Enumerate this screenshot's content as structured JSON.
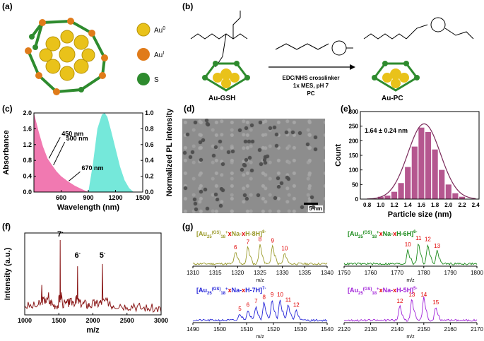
{
  "panel_labels": {
    "a": "(a)",
    "b": "(b)",
    "c": "(c)",
    "d": "(d)",
    "e": "(e)",
    "f": "(f)",
    "g": "(g)"
  },
  "legend_a": {
    "au0": "Au",
    "au0_sup": "0",
    "au1": "Au",
    "au1_sup": "I",
    "s": "S",
    "colors": {
      "au0": "#e9c21a",
      "au1": "#e07b1a",
      "s": "#2e8b2e"
    }
  },
  "scheme_b": {
    "left_label": "Au-GSH",
    "right_label": "Au-PC",
    "conditions": [
      "EDC/NHS crosslinker",
      "1x MES, pH 7",
      "PC"
    ]
  },
  "tem_d": {
    "scale_label": "5 nm"
  },
  "chart_data": [
    {
      "id": "c",
      "type": "area",
      "xlabel": "Wavelength (nm)",
      "ylabel_left": "Absorbance",
      "ylabel_right": "Normalized PL intensity",
      "xlim": [
        300,
        1500
      ],
      "ylim_left": [
        0,
        2.0
      ],
      "ylim_right": [
        0,
        1.0
      ],
      "xticks": [
        600,
        900,
        1200,
        1500
      ],
      "yticks_left": [
        0.0,
        0.4,
        0.8,
        1.2,
        1.6,
        2.0
      ],
      "yticks_right": [
        0.0,
        0.2,
        0.4,
        0.6,
        0.8,
        1.0
      ],
      "annotations": [
        "450 nm",
        "500 nm",
        "670 nm"
      ],
      "series": [
        {
          "role": "absorbance",
          "color": "#f06aa8",
          "x": [
            300,
            350,
            400,
            450,
            500,
            550,
            600,
            670,
            750,
            850,
            900
          ],
          "y": [
            2.0,
            1.55,
            1.15,
            0.85,
            0.68,
            0.52,
            0.4,
            0.28,
            0.16,
            0.05,
            0.0
          ]
        },
        {
          "role": "pl",
          "color": "#66e6d6",
          "x": [
            900,
            950,
            1000,
            1050,
            1080,
            1110,
            1150,
            1200,
            1250,
            1300,
            1350,
            1400
          ],
          "y": [
            0.0,
            0.35,
            0.8,
            0.98,
            1.0,
            0.95,
            0.78,
            0.55,
            0.32,
            0.15,
            0.05,
            0.0
          ]
        }
      ]
    },
    {
      "id": "e",
      "type": "bar",
      "xlabel": "Particle size (nm)",
      "ylabel": "Count",
      "annotation": "1.64 ± 0.24 nm",
      "xlim": [
        0.7,
        2.45
      ],
      "ylim": [
        0,
        300
      ],
      "xticks": [
        "0.8",
        "1.0",
        "1.2",
        "1.4",
        "1.6",
        "1.8",
        "2.0",
        "2.2",
        "2.4"
      ],
      "xtick_labels": [
        "0.8",
        "1.0",
        "1.2",
        "1.4",
        "1.6",
        "1.8",
        "2.0",
        "2.2",
        "2.4"
      ],
      "yticks": [
        0,
        50,
        100,
        150,
        200,
        250,
        300
      ],
      "bar_color": "#b5578f",
      "bins": [
        1.0,
        1.1,
        1.2,
        1.3,
        1.4,
        1.5,
        1.6,
        1.7,
        1.8,
        1.9,
        2.0,
        2.1,
        2.2
      ],
      "values": [
        8,
        12,
        25,
        55,
        110,
        180,
        245,
        230,
        170,
        100,
        50,
        20,
        8
      ]
    },
    {
      "id": "f",
      "type": "line",
      "xlabel": "m/z",
      "ylabel": "Intensity (a.u.)",
      "xlim": [
        1000,
        3000
      ],
      "xticks": [
        1000,
        1500,
        2000,
        2500,
        3000
      ],
      "color": "#8b1a1a",
      "peak_labels": [
        {
          "x": 1520,
          "text": "7",
          "sup": "-"
        },
        {
          "x": 1775,
          "text": "6",
          "sup": "-"
        },
        {
          "x": 2140,
          "text": "5",
          "sup": "-"
        }
      ],
      "x": [
        1000,
        1100,
        1200,
        1250,
        1300,
        1350,
        1400,
        1450,
        1500,
        1520,
        1540,
        1600,
        1650,
        1700,
        1750,
        1775,
        1800,
        1850,
        1900,
        1950,
        2000,
        2050,
        2100,
        2140,
        2180,
        2250,
        2300,
        2400,
        2500,
        2600,
        2700,
        2800,
        2900,
        3000
      ],
      "y": [
        0.12,
        0.1,
        0.14,
        0.4,
        0.22,
        0.3,
        0.18,
        0.12,
        0.25,
        1.0,
        0.3,
        0.15,
        0.22,
        0.18,
        0.25,
        0.65,
        0.2,
        0.15,
        0.18,
        0.12,
        0.2,
        0.15,
        0.18,
        0.68,
        0.2,
        0.18,
        0.12,
        0.14,
        0.1,
        0.15,
        0.08,
        0.06,
        0.05,
        0.04
      ]
    },
    {
      "id": "g1",
      "type": "line",
      "color": "#9a9a2a",
      "title_parts": [
        "[Au",
        "25",
        "(GS)",
        "18",
        "+",
        "x",
        "Na-",
        "x",
        "H-8H]",
        "8-"
      ],
      "xlabel": "m/z",
      "xlim": [
        1310,
        1340
      ],
      "xticks": [
        1310,
        1315,
        1320,
        1325,
        1330,
        1335,
        1340
      ],
      "peak_labels": [
        "6",
        "7",
        "8",
        "9",
        "10"
      ],
      "peak_x": [
        1319.5,
        1322.3,
        1325,
        1327.8,
        1330.5
      ],
      "peak_h": [
        0.45,
        0.65,
        0.75,
        0.7,
        0.4
      ]
    },
    {
      "id": "g2",
      "type": "line",
      "color": "#1a8a1a",
      "title_parts": [
        "[Au",
        "25",
        "(GS)",
        "18",
        "+",
        "x",
        "Na-",
        "x",
        "H-6H]",
        "6-"
      ],
      "xlabel": "m/z",
      "xlim": [
        1750,
        1800
      ],
      "xticks": [
        1750,
        1760,
        1770,
        1780,
        1790,
        1800
      ],
      "peak_labels": [
        "10",
        "11",
        "12",
        "13"
      ],
      "peak_x": [
        1774,
        1778,
        1781.5,
        1785
      ],
      "peak_h": [
        0.55,
        0.8,
        0.75,
        0.5
      ]
    },
    {
      "id": "g3",
      "type": "line",
      "color": "#2424d8",
      "title_parts": [
        "[Au",
        "25",
        "(GS)",
        "18",
        "+",
        "x",
        "Na-",
        "x",
        "H-7H]",
        "7-"
      ],
      "xlabel": "m/z",
      "xlim": [
        1490,
        1540
      ],
      "xticks": [
        1490,
        1500,
        1510,
        1520,
        1530,
        1540
      ],
      "peak_labels": [
        "5",
        "6",
        "7",
        "8",
        "9",
        "10",
        "11",
        "12"
      ],
      "peak_x": [
        1507.5,
        1510.5,
        1513.5,
        1516.5,
        1519.5,
        1522.5,
        1525.5,
        1528.5
      ],
      "peak_h": [
        0.25,
        0.4,
        0.55,
        0.7,
        0.8,
        0.8,
        0.6,
        0.4
      ]
    },
    {
      "id": "g4",
      "type": "line",
      "color": "#a020d8",
      "title_parts": [
        "[Au",
        "25",
        "(GS)",
        "18",
        "+",
        "x",
        "Na-",
        "x",
        "H-5H]",
        "5-"
      ],
      "xlabel": "m/z",
      "xlim": [
        2120,
        2170
      ],
      "xticks": [
        2120,
        2130,
        2140,
        2150,
        2160,
        2170
      ],
      "peak_labels": [
        "12",
        "13",
        "14",
        "15"
      ],
      "peak_x": [
        2141,
        2145.5,
        2150,
        2154.5
      ],
      "peak_h": [
        0.55,
        0.85,
        0.9,
        0.5
      ]
    }
  ]
}
